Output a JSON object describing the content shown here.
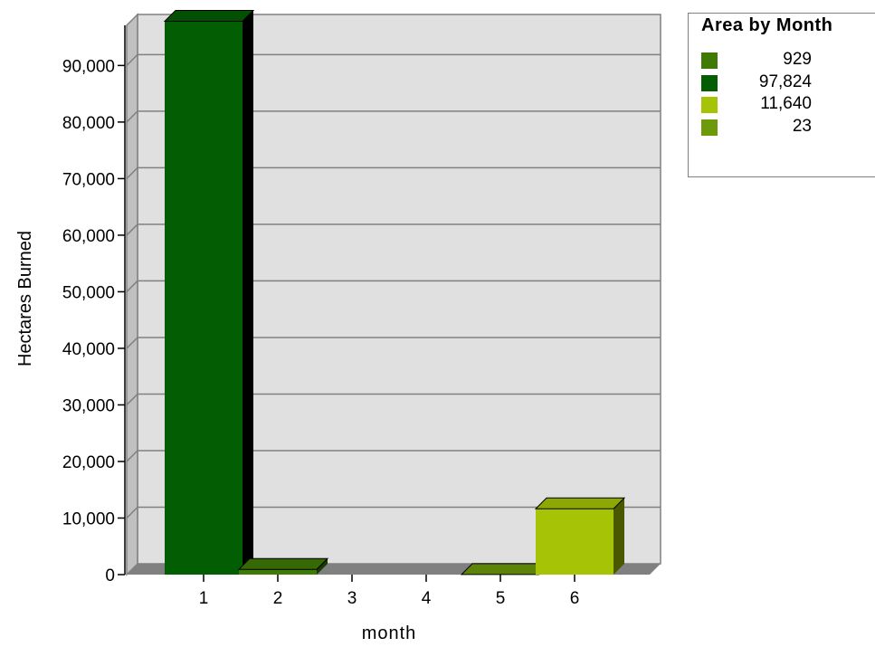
{
  "chart_data": {
    "type": "bar",
    "title": "",
    "xlabel": "month",
    "ylabel": "Hectares Burned",
    "categories": [
      "1",
      "2",
      "3",
      "4",
      "5",
      "6"
    ],
    "values": [
      97824,
      929,
      null,
      null,
      23,
      11640
    ],
    "ylim": [
      0,
      98000
    ],
    "yticks": [
      "0",
      "10,000",
      "20,000",
      "30,000",
      "40,000",
      "50,000",
      "60,000",
      "70,000",
      "80,000",
      "90,000"
    ],
    "grid": true,
    "style": "3d",
    "bar_colors": [
      "#035e03",
      "#3f7a06",
      null,
      null,
      "#6e9a0a",
      "#a6c405"
    ],
    "legend": {
      "title": "Area by Month",
      "placement": "top-right",
      "items": [
        {
          "label": "929",
          "color": "#3f7a06"
        },
        {
          "label": "97,824",
          "color": "#035e03"
        },
        {
          "label": "11,640",
          "color": "#a6c405"
        },
        {
          "label": "23",
          "color": "#6e9a0a"
        }
      ]
    }
  }
}
